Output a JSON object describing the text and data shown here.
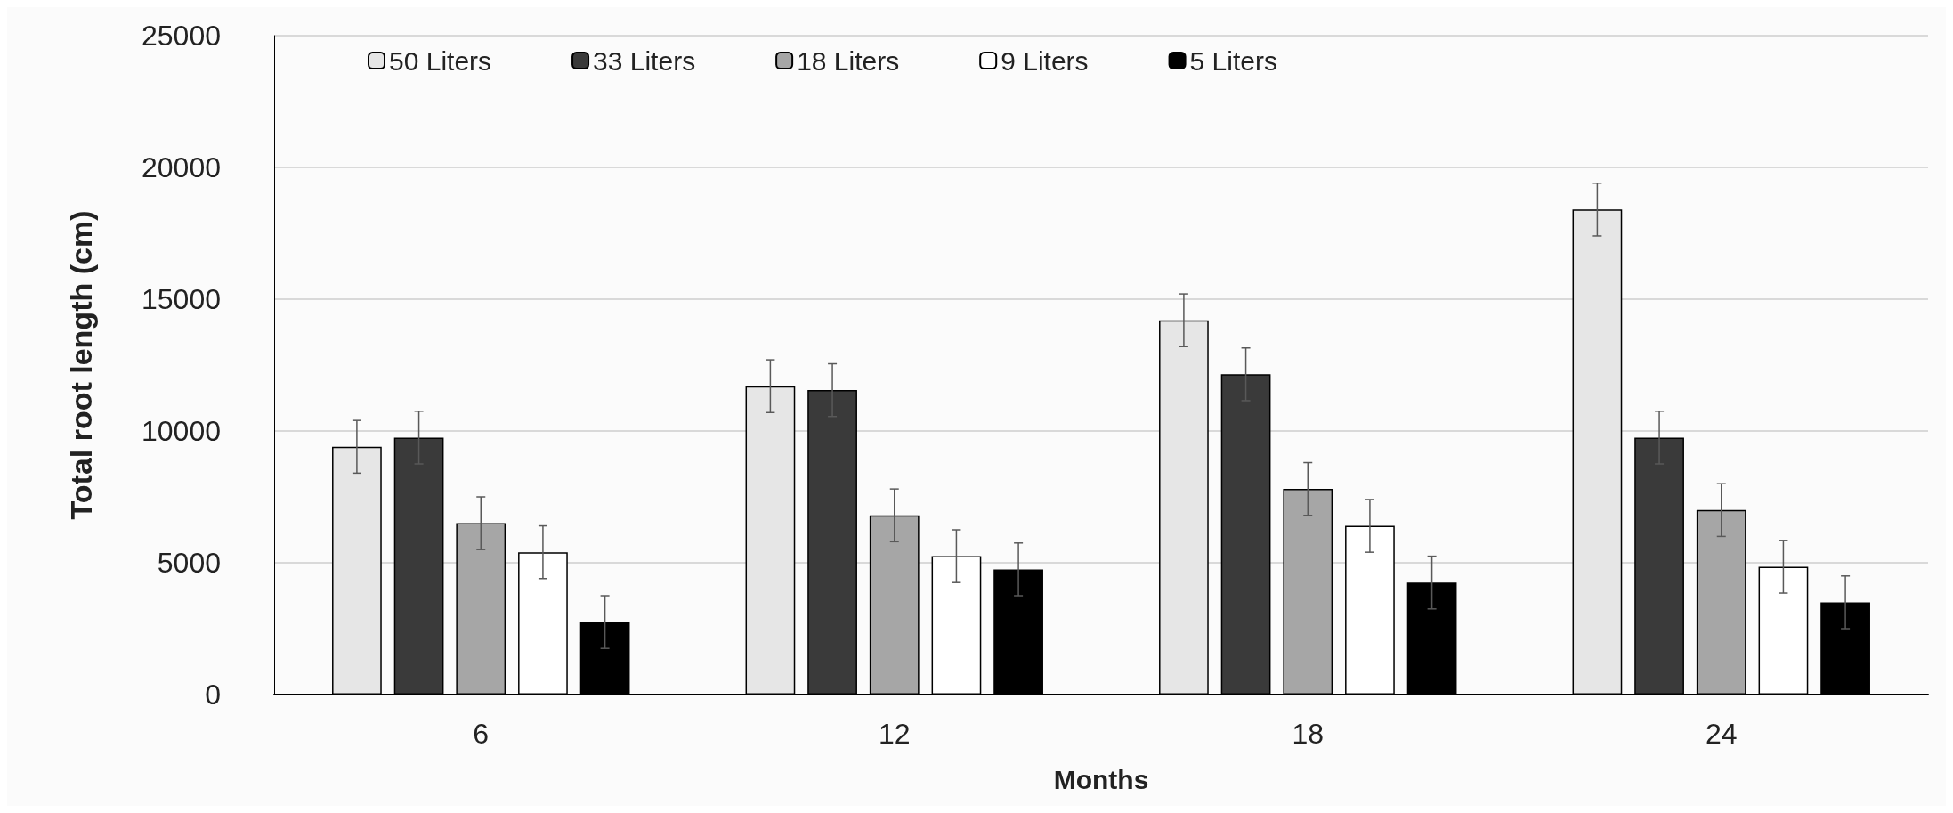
{
  "chart_data": {
    "type": "bar",
    "xlabel": "Months",
    "ylabel": "Total root length (cm)",
    "categories": [
      "6",
      "12",
      "18",
      "24"
    ],
    "ylim": [
      0,
      25000
    ],
    "yticks": [
      0,
      5000,
      10000,
      15000,
      20000,
      25000
    ],
    "grid": "y",
    "legend": "top left",
    "series": [
      {
        "name": "50 Liters",
        "color": "#e6e6e6",
        "values": [
          9400,
          11700,
          14200,
          18400
        ],
        "errors": [
          1000,
          1000,
          1000,
          1000
        ]
      },
      {
        "name": "33 Liters",
        "color": "#3a3a3a",
        "values": [
          9750,
          11550,
          12150,
          9750
        ],
        "errors": [
          1000,
          1000,
          1000,
          1000
        ]
      },
      {
        "name": "18 Liters",
        "color": "#a6a6a6",
        "values": [
          6500,
          6800,
          7800,
          7000
        ],
        "errors": [
          1000,
          1000,
          1000,
          1000
        ]
      },
      {
        "name": "9 Liters",
        "color": "#ffffff",
        "values": [
          5400,
          5250,
          6400,
          4850
        ],
        "errors": [
          1000,
          1000,
          1000,
          1000
        ]
      },
      {
        "name": "5 Liters",
        "color": "#000000",
        "values": [
          2750,
          4750,
          4250,
          3500
        ],
        "errors": [
          1000,
          1000,
          1000,
          1000
        ]
      }
    ]
  }
}
